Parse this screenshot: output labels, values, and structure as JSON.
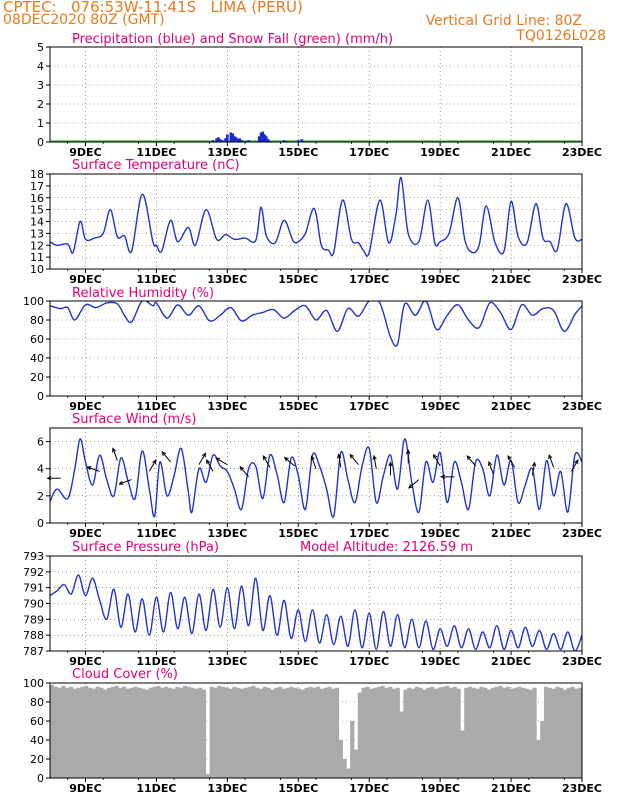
{
  "header": {
    "line1": "CPTEC:   076:53W-11:41S   LIMA (PERU)",
    "line2": "08DEC2020 80Z (GMT)",
    "grid_note": "Vertical Grid Line: 80Z",
    "code": "TQ0126L028",
    "altitude_note": "Model Altitude: 2126.59 m"
  },
  "colors": {
    "header": "#e87a1e",
    "title": "#e0007a",
    "line": "#2233cc",
    "precip": "#1a2acc",
    "snow": "#22aa22",
    "cloud": "#aaaaaa",
    "frame": "#000000",
    "grid": "#555555"
  },
  "x_axis": {
    "labels": [
      "9DEC",
      "11DEC",
      "13DEC",
      "15DEC",
      "17DEC",
      "19DEC",
      "21DEC",
      "23DEC"
    ],
    "label_days": [
      9,
      11,
      13,
      15,
      17,
      19,
      21,
      23
    ],
    "start_day": 8.0,
    "end_day": 23.0
  },
  "chart_data": [
    {
      "type": "bar",
      "id": "precip",
      "title": "Precipitation (blue) and Snow Fall (green) (mm/h)",
      "ylim": [
        0,
        5
      ],
      "yticks": [
        0,
        1,
        2,
        3,
        4,
        5
      ],
      "series": [
        {
          "name": "Precipitation",
          "x": [
            12.6,
            12.7,
            12.75,
            12.8,
            12.85,
            12.9,
            12.95,
            13.0,
            13.1,
            13.15,
            13.2,
            13.25,
            13.3,
            13.35,
            13.4,
            13.5,
            13.6,
            13.9,
            13.95,
            14.0,
            14.05,
            14.1,
            14.15,
            14.2,
            14.6,
            14.65,
            15.0,
            15.1,
            15.15
          ],
          "values": [
            0.1,
            0.2,
            0.25,
            0.15,
            0.1,
            0.05,
            0.2,
            0.4,
            0.5,
            0.45,
            0.3,
            0.25,
            0.15,
            0.2,
            0.1,
            0.05,
            0.1,
            0.3,
            0.5,
            0.55,
            0.4,
            0.3,
            0.15,
            0.05,
            0.1,
            0.05,
            0.1,
            0.15,
            0.05
          ]
        },
        {
          "name": "Snow Fall",
          "x": [
            8.0,
            23.0
          ],
          "values": [
            0,
            0
          ]
        }
      ]
    },
    {
      "type": "line",
      "id": "temp",
      "title": "Surface Temperature (nC)",
      "ylim": [
        10,
        18
      ],
      "yticks": [
        10,
        11,
        12,
        13,
        14,
        15,
        16,
        17,
        18
      ],
      "x": [
        8.0,
        8.2,
        8.5,
        8.65,
        8.85,
        9.0,
        9.25,
        9.5,
        9.7,
        9.9,
        10.1,
        10.3,
        10.6,
        10.9,
        11.0,
        11.15,
        11.4,
        11.6,
        11.9,
        12.1,
        12.4,
        12.7,
        12.95,
        13.2,
        13.5,
        13.8,
        13.95,
        14.1,
        14.35,
        14.6,
        14.85,
        15.0,
        15.2,
        15.45,
        15.65,
        15.85,
        16.0,
        16.25,
        16.5,
        16.7,
        16.85,
        17.0,
        17.3,
        17.55,
        17.75,
        17.9,
        18.1,
        18.4,
        18.65,
        18.85,
        19.0,
        19.25,
        19.5,
        19.7,
        19.9,
        20.1,
        20.3,
        20.55,
        20.8,
        21.0,
        21.2,
        21.45,
        21.7,
        21.9,
        22.1,
        22.3,
        22.55,
        22.8,
        23.0
      ],
      "values": [
        12.3,
        12.0,
        12.1,
        11.4,
        14.0,
        12.5,
        12.6,
        13.0,
        15.0,
        12.7,
        12.8,
        11.5,
        16.3,
        12.3,
        12.0,
        11.5,
        14.1,
        12.3,
        13.5,
        12.0,
        15.0,
        12.5,
        12.9,
        12.5,
        12.6,
        12.4,
        15.2,
        12.8,
        12.2,
        14.1,
        12.4,
        12.3,
        13.0,
        15.1,
        12.0,
        11.6,
        11.4,
        15.8,
        12.5,
        12.2,
        11.5,
        11.4,
        15.8,
        12.2,
        14.5,
        17.7,
        13.0,
        12.3,
        15.8,
        12.2,
        12.3,
        13.0,
        16.0,
        12.4,
        11.4,
        12.0,
        15.3,
        12.2,
        11.5,
        15.7,
        12.7,
        12.2,
        15.5,
        12.6,
        12.3,
        11.6,
        15.5,
        12.6,
        12.5
      ]
    },
    {
      "type": "line",
      "id": "rh",
      "title": "Relative Humidity (%)",
      "ylim": [
        0,
        100
      ],
      "yticks": [
        0,
        20,
        40,
        60,
        80,
        100
      ],
      "x": [
        8.0,
        8.3,
        8.5,
        8.7,
        9.0,
        9.3,
        9.6,
        9.9,
        10.1,
        10.3,
        10.6,
        10.9,
        11.0,
        11.3,
        11.6,
        11.9,
        12.2,
        12.5,
        12.8,
        13.1,
        13.4,
        13.7,
        14.0,
        14.3,
        14.6,
        14.9,
        15.2,
        15.5,
        15.8,
        16.1,
        16.4,
        16.7,
        17.0,
        17.3,
        17.6,
        17.8,
        18.0,
        18.3,
        18.6,
        18.9,
        19.2,
        19.5,
        19.8,
        20.1,
        20.4,
        20.7,
        21.0,
        21.3,
        21.6,
        21.9,
        22.2,
        22.5,
        22.8,
        23.0
      ],
      "values": [
        95,
        92,
        93,
        80,
        96,
        93,
        98,
        97,
        85,
        78,
        100,
        95,
        98,
        82,
        96,
        85,
        95,
        79,
        85,
        93,
        79,
        85,
        88,
        91,
        82,
        90,
        95,
        80,
        90,
        68,
        92,
        84,
        100,
        98,
        62,
        55,
        97,
        85,
        100,
        70,
        85,
        96,
        80,
        72,
        98,
        88,
        70,
        96,
        85,
        92,
        90,
        68,
        86,
        95
      ]
    },
    {
      "type": "line",
      "id": "wind",
      "title": "Surface Wind (m/s)",
      "ylim": [
        0,
        7
      ],
      "yticks": [
        0,
        2,
        4,
        6
      ],
      "x": [
        8.0,
        8.2,
        8.5,
        8.7,
        8.85,
        9.0,
        9.2,
        9.4,
        9.6,
        9.8,
        10.0,
        10.2,
        10.4,
        10.6,
        10.8,
        10.95,
        11.1,
        11.3,
        11.5,
        11.7,
        11.9,
        12.0,
        12.2,
        12.4,
        12.6,
        12.8,
        13.0,
        13.2,
        13.4,
        13.6,
        13.8,
        14.0,
        14.2,
        14.4,
        14.6,
        14.8,
        15.0,
        15.2,
        15.4,
        15.6,
        15.8,
        16.0,
        16.2,
        16.4,
        16.6,
        16.8,
        17.0,
        17.2,
        17.4,
        17.6,
        17.8,
        18.0,
        18.2,
        18.4,
        18.6,
        18.8,
        19.0,
        19.2,
        19.4,
        19.6,
        19.8,
        20.0,
        20.2,
        20.4,
        20.6,
        20.8,
        21.0,
        21.2,
        21.4,
        21.6,
        21.8,
        22.0,
        22.2,
        22.4,
        22.6,
        22.8,
        23.0
      ],
      "values": [
        1.6,
        2.5,
        1.8,
        4.0,
        6.2,
        4.5,
        2.8,
        5.0,
        3.2,
        2.0,
        4.8,
        3.1,
        1.8,
        5.3,
        2.5,
        0.5,
        4.5,
        2.0,
        3.5,
        5.5,
        2.3,
        0.8,
        4.0,
        3.0,
        5.0,
        4.2,
        3.8,
        2.5,
        1.0,
        4.0,
        4.2,
        1.8,
        5.0,
        3.6,
        1.5,
        4.8,
        3.5,
        1.0,
        5.0,
        4.2,
        2.5,
        0.5,
        5.2,
        3.2,
        1.5,
        4.2,
        5.5,
        1.5,
        3.5,
        5.0,
        2.5,
        6.2,
        3.0,
        0.8,
        4.5,
        3.0,
        5.2,
        1.5,
        4.5,
        3.0,
        1.0,
        4.5,
        4.0,
        2.0,
        5.0,
        2.8,
        4.6,
        1.5,
        2.8,
        4.0,
        1.0,
        4.6,
        2.0,
        3.8,
        0.8,
        5.0,
        4.5
      ]
    },
    {
      "type": "line",
      "id": "pres",
      "title": "Surface Pressure (hPa)",
      "ylim": [
        787,
        793
      ],
      "yticks": [
        787,
        788,
        789,
        790,
        791,
        792,
        793
      ],
      "x": [
        8.0,
        8.2,
        8.4,
        8.6,
        8.8,
        9.0,
        9.2,
        9.4,
        9.6,
        9.8,
        10.0,
        10.2,
        10.4,
        10.6,
        10.8,
        11.0,
        11.2,
        11.4,
        11.6,
        11.8,
        12.0,
        12.2,
        12.4,
        12.6,
        12.8,
        13.0,
        13.2,
        13.4,
        13.6,
        13.8,
        14.0,
        14.2,
        14.4,
        14.6,
        14.8,
        15.0,
        15.2,
        15.4,
        15.6,
        15.8,
        16.0,
        16.2,
        16.4,
        16.6,
        16.8,
        17.0,
        17.2,
        17.4,
        17.6,
        17.8,
        18.0,
        18.2,
        18.4,
        18.6,
        18.8,
        19.0,
        19.2,
        19.4,
        19.6,
        19.8,
        20.0,
        20.2,
        20.4,
        20.6,
        20.8,
        21.0,
        21.2,
        21.4,
        21.6,
        21.8,
        22.0,
        22.2,
        22.4,
        22.6,
        22.8,
        23.0
      ],
      "values": [
        790.5,
        790.8,
        791.2,
        790.6,
        791.8,
        790.5,
        791.6,
        790.2,
        789.0,
        790.9,
        788.5,
        790.6,
        788.2,
        790.3,
        788.0,
        790.4,
        788.2,
        790.7,
        788.4,
        790.4,
        788.1,
        790.6,
        788.3,
        790.9,
        788.5,
        791.0,
        788.4,
        791.1,
        788.6,
        791.6,
        788.3,
        790.5,
        788.0,
        790.2,
        787.8,
        789.6,
        787.6,
        789.6,
        787.5,
        789.3,
        787.4,
        789.2,
        787.3,
        789.6,
        787.2,
        789.4,
        787.1,
        789.5,
        787.3,
        789.3,
        787.2,
        789.0,
        787.2,
        788.9,
        787.1,
        788.4,
        787.3,
        788.6,
        787.2,
        788.4,
        787.1,
        788.2,
        787.2,
        788.6,
        787.1,
        788.3,
        787.2,
        788.5,
        787.3,
        788.3,
        787.1,
        788.1,
        787.1,
        788.2,
        787.0,
        788.0
      ]
    },
    {
      "type": "bar",
      "id": "cloud",
      "title": "Cloud Cover (%)",
      "ylim": [
        0,
        100
      ],
      "yticks": [
        0,
        20,
        40,
        60,
        80,
        100
      ],
      "values": [
        98,
        96,
        95,
        97,
        95,
        96,
        94,
        95,
        96,
        97,
        95,
        94,
        96,
        95,
        93,
        95,
        96,
        97,
        95,
        96,
        94,
        95,
        96,
        95,
        94,
        93,
        95,
        96,
        97,
        95,
        96,
        95,
        94,
        96,
        95,
        97,
        96,
        95,
        94,
        95,
        93,
        4,
        96,
        95,
        97,
        96,
        95,
        94,
        96,
        95,
        94,
        95,
        96,
        97,
        95,
        94,
        96,
        95,
        93,
        95,
        96,
        94,
        95,
        96,
        95,
        94,
        93,
        95,
        96,
        95,
        96,
        94,
        95,
        96,
        94,
        95,
        40,
        20,
        10,
        60,
        30,
        90,
        95,
        96,
        94,
        95,
        96,
        97,
        95,
        96,
        94,
        95,
        70,
        93,
        95,
        94,
        96,
        95,
        93,
        95,
        96,
        94,
        95,
        96,
        97,
        95,
        96,
        94,
        50,
        95,
        96,
        95,
        94,
        96,
        95,
        93,
        95,
        96,
        97,
        95,
        96,
        94,
        95,
        96,
        95,
        94,
        93,
        95,
        40,
        60,
        96,
        95,
        94,
        96,
        95,
        93,
        95,
        96,
        94,
        95
      ]
    }
  ],
  "wind_vectors": [
    {
      "day": 8.3,
      "value": 3.3,
      "dir_deg": 180
    },
    {
      "day": 9.4,
      "value": 3.8,
      "dir_deg": 160
    },
    {
      "day": 9.9,
      "value": 4.6,
      "dir_deg": 110
    },
    {
      "day": 10.3,
      "value": 3.2,
      "dir_deg": 200
    },
    {
      "day": 10.8,
      "value": 3.8,
      "dir_deg": 60
    },
    {
      "day": 11.4,
      "value": 4.5,
      "dir_deg": 130
    },
    {
      "day": 12.2,
      "value": 4.3,
      "dir_deg": 60
    },
    {
      "day": 12.6,
      "value": 3.8,
      "dir_deg": 120
    },
    {
      "day": 13.0,
      "value": 4.3,
      "dir_deg": 150
    },
    {
      "day": 13.6,
      "value": 3.4,
      "dir_deg": 130
    },
    {
      "day": 14.2,
      "value": 4.1,
      "dir_deg": 120
    },
    {
      "day": 14.9,
      "value": 4.2,
      "dir_deg": 140
    },
    {
      "day": 15.5,
      "value": 4.0,
      "dir_deg": 110
    },
    {
      "day": 16.2,
      "value": 4.1,
      "dir_deg": 100
    },
    {
      "day": 16.7,
      "value": 4.3,
      "dir_deg": 130
    },
    {
      "day": 17.2,
      "value": 4.0,
      "dir_deg": 100
    },
    {
      "day": 17.6,
      "value": 3.5,
      "dir_deg": 90
    },
    {
      "day": 18.1,
      "value": 4.4,
      "dir_deg": 90
    },
    {
      "day": 18.4,
      "value": 3.2,
      "dir_deg": 220
    },
    {
      "day": 19.0,
      "value": 4.2,
      "dir_deg": 120
    },
    {
      "day": 19.4,
      "value": 3.4,
      "dir_deg": 180
    },
    {
      "day": 20.0,
      "value": 4.2,
      "dir_deg": 130
    },
    {
      "day": 20.5,
      "value": 3.6,
      "dir_deg": 110
    },
    {
      "day": 21.1,
      "value": 4.1,
      "dir_deg": 120
    },
    {
      "day": 21.6,
      "value": 3.5,
      "dir_deg": 80
    },
    {
      "day": 22.2,
      "value": 4.1,
      "dir_deg": 110
    },
    {
      "day": 22.7,
      "value": 3.8,
      "dir_deg": 60
    }
  ]
}
